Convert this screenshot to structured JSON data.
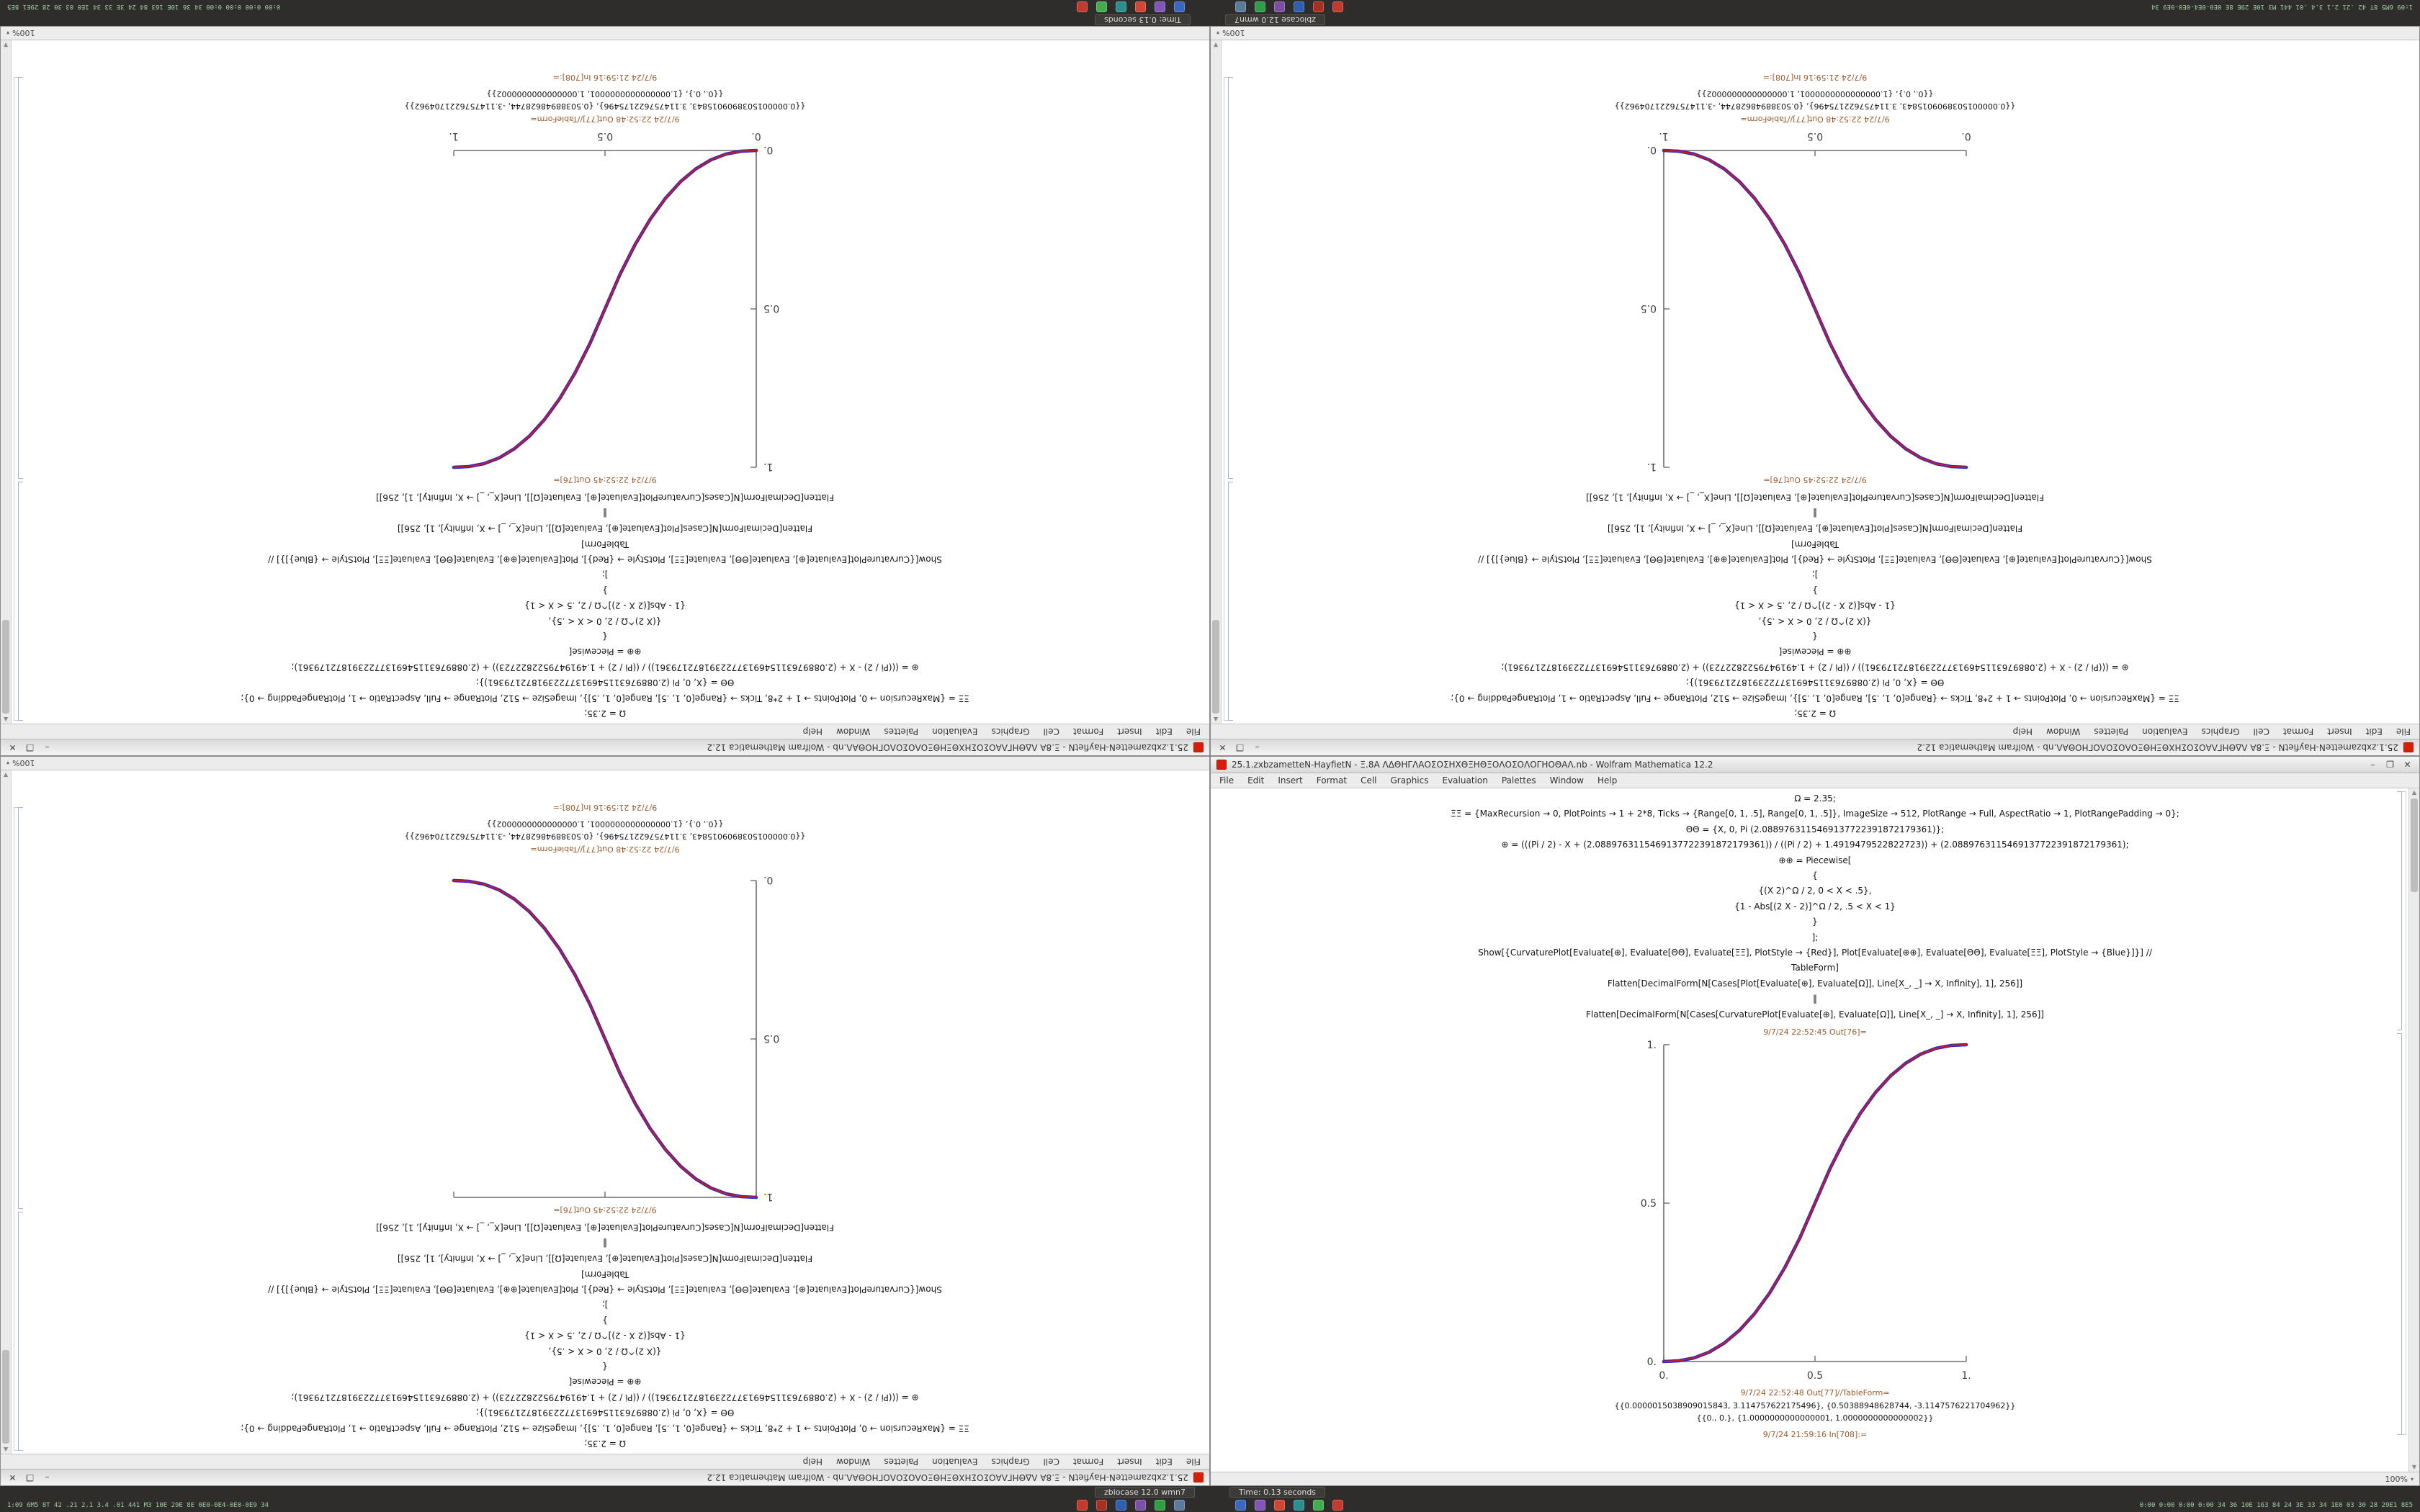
{
  "taskbar": {
    "window_buttons": [
      {
        "label": "zbiocase 12.0 wmn7"
      },
      {
        "label": "Time: 0.13 seconds"
      }
    ],
    "icons": [
      {
        "name": "taskbar-app-icon-red-1",
        "color": "#c23a2b"
      },
      {
        "name": "taskbar-app-icon-red-2",
        "color": "#a92f23"
      },
      {
        "name": "taskbar-app-icon-blue-1",
        "color": "#2f5fb3"
      },
      {
        "name": "taskbar-app-icon-purple-1",
        "color": "#7c4fa4"
      },
      {
        "name": "taskbar-app-icon-green-1",
        "color": "#2f9e44"
      },
      {
        "name": "taskbar-app-icon-slate-1",
        "color": "#5b7b9d"
      },
      {
        "name": "taskbar-app-icon-blue-2",
        "color": "#3a67c2"
      },
      {
        "name": "taskbar-app-icon-violet-1",
        "color": "#8156b7"
      },
      {
        "name": "taskbar-app-icon-red-3",
        "color": "#d24434"
      },
      {
        "name": "taskbar-app-icon-teal-1",
        "color": "#2a8f8f"
      },
      {
        "name": "taskbar-app-icon-green-2",
        "color": "#41ae4b"
      },
      {
        "name": "taskbar-app-icon-red-4",
        "color": "#c23b2e"
      }
    ],
    "tray_left": "1:09 6M5 8T 42 .21 2.1 3.4 .01 441 M3 10E 29E 8E 0E0-0E4-0E0-0E9 34",
    "tray_right": "0:00 0:00 0:00 0:00 34 36 10E 163 84 24 3E 33 34 1E0 03 30 28 29E1 8E5"
  },
  "notebook": {
    "title": "25.1.zxbzametteN-HayfietN - Ξ.8Α ΛΔΘΗΓΛΑΟΣΟΣΗΧΘΞΗΘΞΟΛΟΣΟΛΟΓΗΟΘΑΛ.nb - Wolfram Mathematica 12.2",
    "menu": [
      "File",
      "Edit",
      "Insert",
      "Format",
      "Cell",
      "Graphics",
      "Evaluation",
      "Palettes",
      "Window",
      "Help"
    ],
    "code_lines": [
      "Ω = 2.35;",
      "ΞΞ = {MaxRecursion → 0, PlotPoints → 1 + 2*8, Ticks → {Range[0, 1, .5], Range[0, 1, .5]}, ImageSize → 512, PlotRange → Full, AspectRatio → 1, PlotRangePadding → 0};",
      "ΘΘ = {X, 0, Pi (2.0889763115469137722391872179361)};",
      "⊕ = (((Pi / 2) - X + (2.0889763115469137722391872179361)) / ((Pi / 2) + 1.4919479522822723)) + (2.0889763115469137722391872179361);",
      "⊕⊕ = Piecewise[",
      "{",
      "{(X 2)^Ω / 2, 0 < X < .5},",
      "{1 - Abs[(2 X - 2)]^Ω / 2, .5 < X < 1}",
      "}",
      "];",
      "Show[{CurvaturePlot[Evaluate[⊕], Evaluate[ΘΘ], Evaluate[ΞΞ], PlotStyle → {Red}], Plot[Evaluate[⊕⊕], Evaluate[ΘΘ], Evaluate[ΞΞ], PlotStyle → {Blue}]}] //",
      "TableForm]",
      "Flatten[DecimalForm[N[Cases[Plot[Evaluate[⊕], Evaluate[Ω]], Line[X_, _] → X, Infinity], 1], 256]]",
      "‖",
      "Flatten[DecimalForm[N[Cases[CurvaturePlot[Evaluate[⊕], Evaluate[Ω]], Line[X_, _] → X, Infinity], 1], 256]]"
    ],
    "out_plot_label": "9/7/24 22:52:45 Out[76]=",
    "out_table_label": "9/7/24 22:52:48 Out[77]//TableForm=",
    "in_label": "9/7/24 21:59:16 In[708]:=",
    "outputs": [
      "{{0.0000015038909015843, 3.114757622175496}, {0.50388948628744, -3.1147576221704962}}",
      "{{0., 0.}, {1.0000000000000001, 1.0000000000000002}}"
    ],
    "zoom_label": "100%",
    "window_controls": {
      "minimize": "–",
      "maximize": "❐",
      "close": "✕"
    }
  },
  "windows": [
    {
      "id": "top-left",
      "rotated": true
    },
    {
      "id": "top-right",
      "rotated": true
    },
    {
      "id": "bottom-left",
      "rotated": true
    },
    {
      "id": "bottom-right",
      "rotated": false
    }
  ],
  "chart_data": [
    {
      "window": "top-left",
      "type": "line",
      "direction": "increasing",
      "x_axis_side": "bottom",
      "y_axis_side": "left",
      "x": [
        0,
        0.05,
        0.1,
        0.15,
        0.2,
        0.25,
        0.3,
        0.35,
        0.4,
        0.45,
        0.5,
        0.55,
        0.6,
        0.65,
        0.7,
        0.75,
        0.8,
        0.85,
        0.9,
        0.95,
        1
      ],
      "y": [
        0,
        0.0022,
        0.0114,
        0.0295,
        0.0581,
        0.0981,
        0.1506,
        0.2163,
        0.2962,
        0.3903,
        0.5,
        0.6097,
        0.7038,
        0.7837,
        0.8494,
        0.9019,
        0.9419,
        0.9705,
        0.9886,
        0.9978,
        1
      ],
      "xlim": [
        0,
        1
      ],
      "ylim": [
        0,
        1
      ],
      "xtick_labels": [
        "0.",
        "0.5",
        "1."
      ],
      "ytick_labels": [
        "0.",
        "0.5",
        "1."
      ],
      "series_colors": {
        "red": "#cc1f1f",
        "blue": "#2724c9"
      }
    },
    {
      "window": "top-right",
      "type": "line",
      "direction": "decreasing",
      "x_axis_side": "bottom",
      "y_axis_side": "right",
      "x": [
        0,
        0.05,
        0.1,
        0.15,
        0.2,
        0.25,
        0.3,
        0.35,
        0.4,
        0.45,
        0.5,
        0.55,
        0.6,
        0.65,
        0.7,
        0.75,
        0.8,
        0.85,
        0.9,
        0.95,
        1
      ],
      "y": [
        1,
        0.9978,
        0.9886,
        0.9705,
        0.9419,
        0.9019,
        0.8494,
        0.7837,
        0.7038,
        0.6097,
        0.5,
        0.3903,
        0.2962,
        0.2163,
        0.1506,
        0.0981,
        0.0581,
        0.0295,
        0.0114,
        0.0022,
        0
      ],
      "xlim": [
        0,
        1
      ],
      "ylim": [
        0,
        1
      ],
      "xtick_labels": [
        "0.",
        "0.5",
        "1."
      ],
      "ytick_labels": [
        "0.",
        "0.5",
        "1."
      ],
      "series_colors": {
        "red": "#cc1f1f",
        "blue": "#2724c9"
      }
    },
    {
      "window": "bottom-left",
      "type": "line",
      "direction": "decreasing",
      "x_axis_side": "top",
      "y_axis_side": "left",
      "x": [
        0,
        0.05,
        0.1,
        0.15,
        0.2,
        0.25,
        0.3,
        0.35,
        0.4,
        0.45,
        0.5,
        0.55,
        0.6,
        0.65,
        0.7,
        0.75,
        0.8,
        0.85,
        0.9,
        0.95,
        1
      ],
      "y": [
        1,
        0.9978,
        0.9886,
        0.9705,
        0.9419,
        0.9019,
        0.8494,
        0.7837,
        0.7038,
        0.6097,
        0.5,
        0.3903,
        0.2962,
        0.2163,
        0.1506,
        0.0981,
        0.0581,
        0.0295,
        0.0114,
        0.0022,
        0
      ],
      "xlim": [
        0,
        1
      ],
      "ylim": [
        0,
        1
      ],
      "xtick_labels": [
        "0.",
        "0.5",
        "1."
      ],
      "ytick_labels": [
        "0.",
        "0.5",
        "1."
      ],
      "series_colors": {
        "red": "#cc1f1f",
        "blue": "#2724c9"
      }
    },
    {
      "window": "bottom-right",
      "type": "line",
      "direction": "increasing",
      "x_axis_side": "bottom",
      "y_axis_side": "left",
      "x": [
        0,
        0.05,
        0.1,
        0.15,
        0.2,
        0.25,
        0.3,
        0.35,
        0.4,
        0.45,
        0.5,
        0.55,
        0.6,
        0.65,
        0.7,
        0.75,
        0.8,
        0.85,
        0.9,
        0.95,
        1
      ],
      "y": [
        0,
        0.0022,
        0.0114,
        0.0295,
        0.0581,
        0.0981,
        0.1506,
        0.2163,
        0.2962,
        0.3903,
        0.5,
        0.6097,
        0.7038,
        0.7837,
        0.8494,
        0.9019,
        0.9419,
        0.9705,
        0.9886,
        0.9978,
        1
      ],
      "xlim": [
        0,
        1
      ],
      "ylim": [
        0,
        1
      ],
      "xtick_labels": [
        "0.",
        "0.5",
        "1."
      ],
      "ytick_labels": [
        "0.",
        "0.5",
        "1."
      ],
      "series_colors": {
        "red": "#cc1f1f",
        "blue": "#2724c9"
      }
    }
  ]
}
